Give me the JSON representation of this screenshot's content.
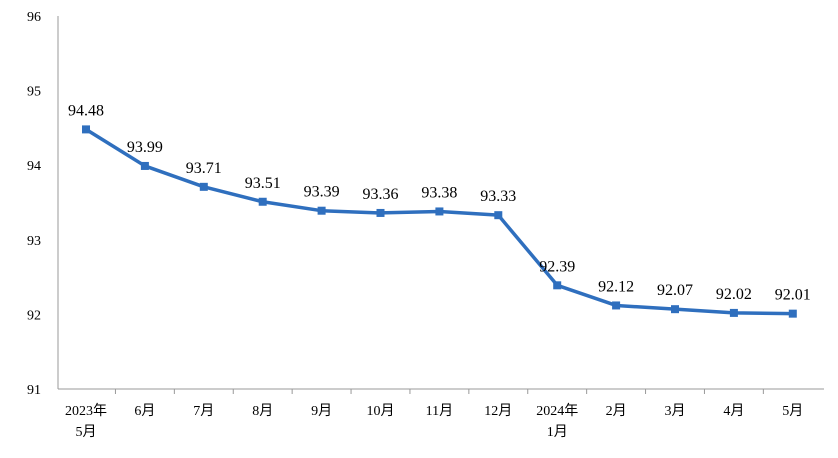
{
  "chart_data": {
    "type": "line",
    "title": "",
    "xlabel": "",
    "ylabel": "",
    "categories": [
      [
        "2023年",
        "5月"
      ],
      [
        "6月"
      ],
      [
        "7月"
      ],
      [
        "8月"
      ],
      [
        "9月"
      ],
      [
        "10月"
      ],
      [
        "11月"
      ],
      [
        "12月"
      ],
      [
        "2024年",
        "1月"
      ],
      [
        "2月"
      ],
      [
        "3月"
      ],
      [
        "4月"
      ],
      [
        "5月"
      ]
    ],
    "series": [
      {
        "values": [
          94.48,
          93.99,
          93.71,
          93.51,
          93.39,
          93.36,
          93.38,
          93.33,
          92.39,
          92.12,
          92.07,
          92.02,
          92.01
        ],
        "labels": [
          "94.48",
          "93.99",
          "93.71",
          "93.51",
          "93.39",
          "93.36",
          "93.38",
          "93.33",
          "92.39",
          "92.12",
          "92.07",
          "92.02",
          "92.01"
        ],
        "color": "#2f6fbe"
      }
    ],
    "ylim": [
      91,
      96
    ],
    "yticks": [
      "91",
      "92",
      "93",
      "94",
      "95",
      "96"
    ],
    "grid": false,
    "legend": "none",
    "axis_color": "#999999"
  }
}
